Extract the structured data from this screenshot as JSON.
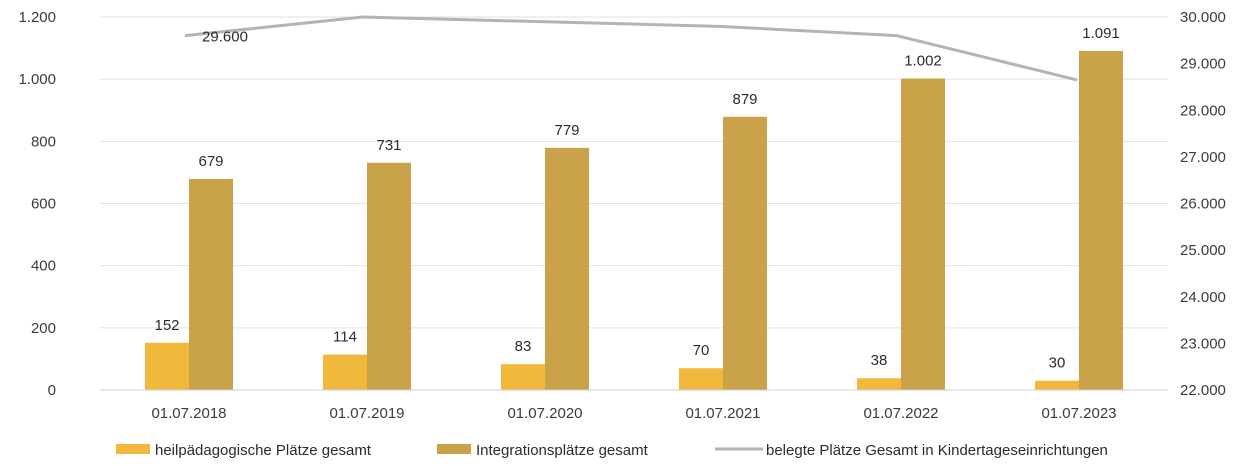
{
  "chart_data": {
    "type": "bar",
    "categories": [
      "01.07.2018",
      "01.07.2019",
      "01.07.2020",
      "01.07.2021",
      "01.07.2022",
      "01.07.2023"
    ],
    "series": [
      {
        "name": "heilpädagogische Plätze gesamt",
        "type": "bar",
        "axis": "left",
        "color": "#f0b93c",
        "values": [
          152,
          114,
          83,
          70,
          38,
          30
        ],
        "labels": [
          "152",
          "114",
          "83",
          "70",
          "38",
          "30"
        ]
      },
      {
        "name": "Integrationsplätze gesamt",
        "type": "bar",
        "axis": "left",
        "color": "#c9a24a",
        "values": [
          679,
          731,
          779,
          879,
          1002,
          1091
        ],
        "labels": [
          "679",
          "731",
          "779",
          "879",
          "1.002",
          "1.091"
        ]
      },
      {
        "name": "belegte Plätze Gesamt in Kindertageseinrichtungen",
        "type": "line",
        "axis": "right",
        "color": "#b4b4b4",
        "values": [
          29600,
          30000,
          29900,
          29800,
          29600,
          28650
        ],
        "labels": [
          "29.600",
          "",
          "",
          "",
          "",
          ""
        ]
      }
    ],
    "left_axis": {
      "ylim": [
        0,
        1200
      ],
      "ticks": [
        0,
        200,
        400,
        600,
        800,
        1000,
        1200
      ],
      "tick_labels": [
        "0",
        "200",
        "400",
        "600",
        "800",
        "1.000",
        "1.200"
      ]
    },
    "right_axis": {
      "ylim": [
        22000,
        30000
      ],
      "ticks": [
        22000,
        23000,
        24000,
        25000,
        26000,
        27000,
        28000,
        29000,
        30000
      ],
      "tick_labels": [
        "22.000",
        "23.000",
        "24.000",
        "25.000",
        "26.000",
        "27.000",
        "28.000",
        "29.000",
        "30.000"
      ]
    },
    "grid": true,
    "legend_position": "bottom",
    "title": "",
    "xlabel": "",
    "ylabel": ""
  }
}
